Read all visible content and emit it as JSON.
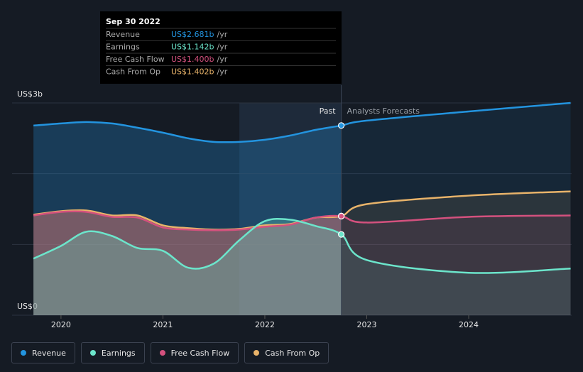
{
  "chart_data": {
    "type": "line",
    "x": [
      2019.73,
      2020.0,
      2020.25,
      2020.5,
      2020.75,
      2021.0,
      2021.25,
      2021.5,
      2021.75,
      2022.0,
      2022.25,
      2022.5,
      2022.75,
      2023.0,
      2024.0,
      2025.0
    ],
    "series": [
      {
        "name": "Revenue",
        "color": "#2394df",
        "values": [
          2.68,
          2.71,
          2.73,
          2.71,
          2.65,
          2.58,
          2.5,
          2.45,
          2.45,
          2.48,
          2.54,
          2.62,
          2.681,
          2.75,
          2.88,
          3.0
        ]
      },
      {
        "name": "Earnings",
        "color": "#6ce5cb",
        "values": [
          0.8,
          0.98,
          1.18,
          1.12,
          0.95,
          0.91,
          0.67,
          0.73,
          1.06,
          1.33,
          1.35,
          1.26,
          1.142,
          0.78,
          0.6,
          0.66
        ]
      },
      {
        "name": "Free Cash Flow",
        "color": "#d4517e",
        "values": [
          1.41,
          1.46,
          1.46,
          1.39,
          1.38,
          1.24,
          1.21,
          1.2,
          1.21,
          1.25,
          1.28,
          1.38,
          1.4,
          1.31,
          1.39,
          1.41
        ]
      },
      {
        "name": "Cash From Op",
        "color": "#e8b36a",
        "values": [
          1.42,
          1.47,
          1.48,
          1.41,
          1.41,
          1.27,
          1.23,
          1.21,
          1.22,
          1.27,
          1.29,
          1.38,
          1.402,
          1.57,
          1.69,
          1.75
        ]
      }
    ],
    "xlim": [
      2019.52,
      2025.01
    ],
    "xticks": [
      2020,
      2021,
      2022,
      2023,
      2024
    ],
    "ylim": [
      0,
      3
    ],
    "yticks": [
      {
        "value": 0,
        "label": "US$0"
      },
      {
        "value": 3,
        "label": "US$3b"
      }
    ],
    "ygrid": [
      0,
      1,
      2,
      3
    ],
    "past_end": 2022.75,
    "highlight_start": 2021.75,
    "past_label": "Past",
    "forecast_label": "Analysts Forecasts",
    "tooltip": {
      "date": "Sep 30 2022",
      "rows": [
        {
          "label": "Revenue",
          "value": "US$2.681b",
          "unit": "/yr"
        },
        {
          "label": "Earnings",
          "value": "US$1.142b",
          "unit": "/yr"
        },
        {
          "label": "Free Cash Flow",
          "value": "US$1.400b",
          "unit": "/yr"
        },
        {
          "label": "Cash From Op",
          "value": "US$1.402b",
          "unit": "/yr"
        }
      ]
    }
  }
}
